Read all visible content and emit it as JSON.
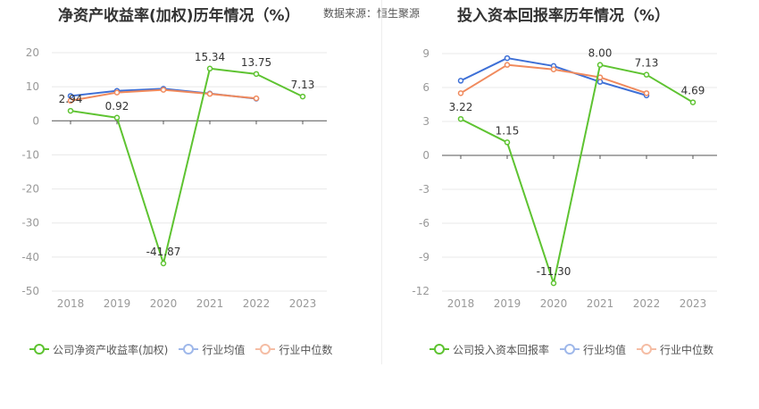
{
  "header": {
    "left_title": "净资产收益率(加权)历年情况（%）",
    "source": "数据来源：恒生聚源",
    "right_title": "投入资本回报率历年情况（%）"
  },
  "colors": {
    "company": "#5ec331",
    "average": "#3d6fd6",
    "median": "#f08a5d",
    "axis_text": "#999999",
    "grid": "#e8e8e8"
  },
  "chart_data": [
    {
      "type": "line",
      "categories": [
        "2018",
        "2019",
        "2020",
        "2021",
        "2022",
        "2023"
      ],
      "ylim": [
        -50,
        20
      ],
      "yticks": [
        "20",
        "10",
        "0",
        "-10",
        "-20",
        "-30",
        "-40",
        "-50"
      ],
      "series": [
        {
          "name": "公司净资产收益率(加权)",
          "values": [
            2.94,
            0.92,
            -41.87,
            15.34,
            13.75,
            7.13
          ],
          "labels": [
            "2.94",
            "0.92",
            "-41.87",
            "15.34",
            "13.75",
            "7.13"
          ]
        },
        {
          "name": "行业均值",
          "values": [
            7.3,
            8.8,
            9.4,
            8.0,
            6.5,
            null
          ]
        },
        {
          "name": "行业中位数",
          "values": [
            5.9,
            8.3,
            9.1,
            7.9,
            6.6,
            null
          ]
        }
      ]
    },
    {
      "type": "line",
      "categories": [
        "2018",
        "2019",
        "2020",
        "2021",
        "2022",
        "2023"
      ],
      "ylim": [
        -12,
        9
      ],
      "yticks": [
        "9",
        "6",
        "3",
        "0",
        "-3",
        "-6",
        "-9",
        "-12"
      ],
      "series": [
        {
          "name": "公司投入资本回报率",
          "values": [
            3.22,
            1.15,
            -11.3,
            8.0,
            7.13,
            4.69
          ],
          "labels": [
            "3.22",
            "1.15",
            "-11.30",
            "8.00",
            "7.13",
            "4.69"
          ]
        },
        {
          "name": "行业均值",
          "values": [
            6.6,
            8.6,
            7.9,
            6.5,
            5.3,
            null
          ]
        },
        {
          "name": "行业中位数",
          "values": [
            5.5,
            8.0,
            7.6,
            6.9,
            5.5,
            null
          ]
        }
      ]
    }
  ]
}
